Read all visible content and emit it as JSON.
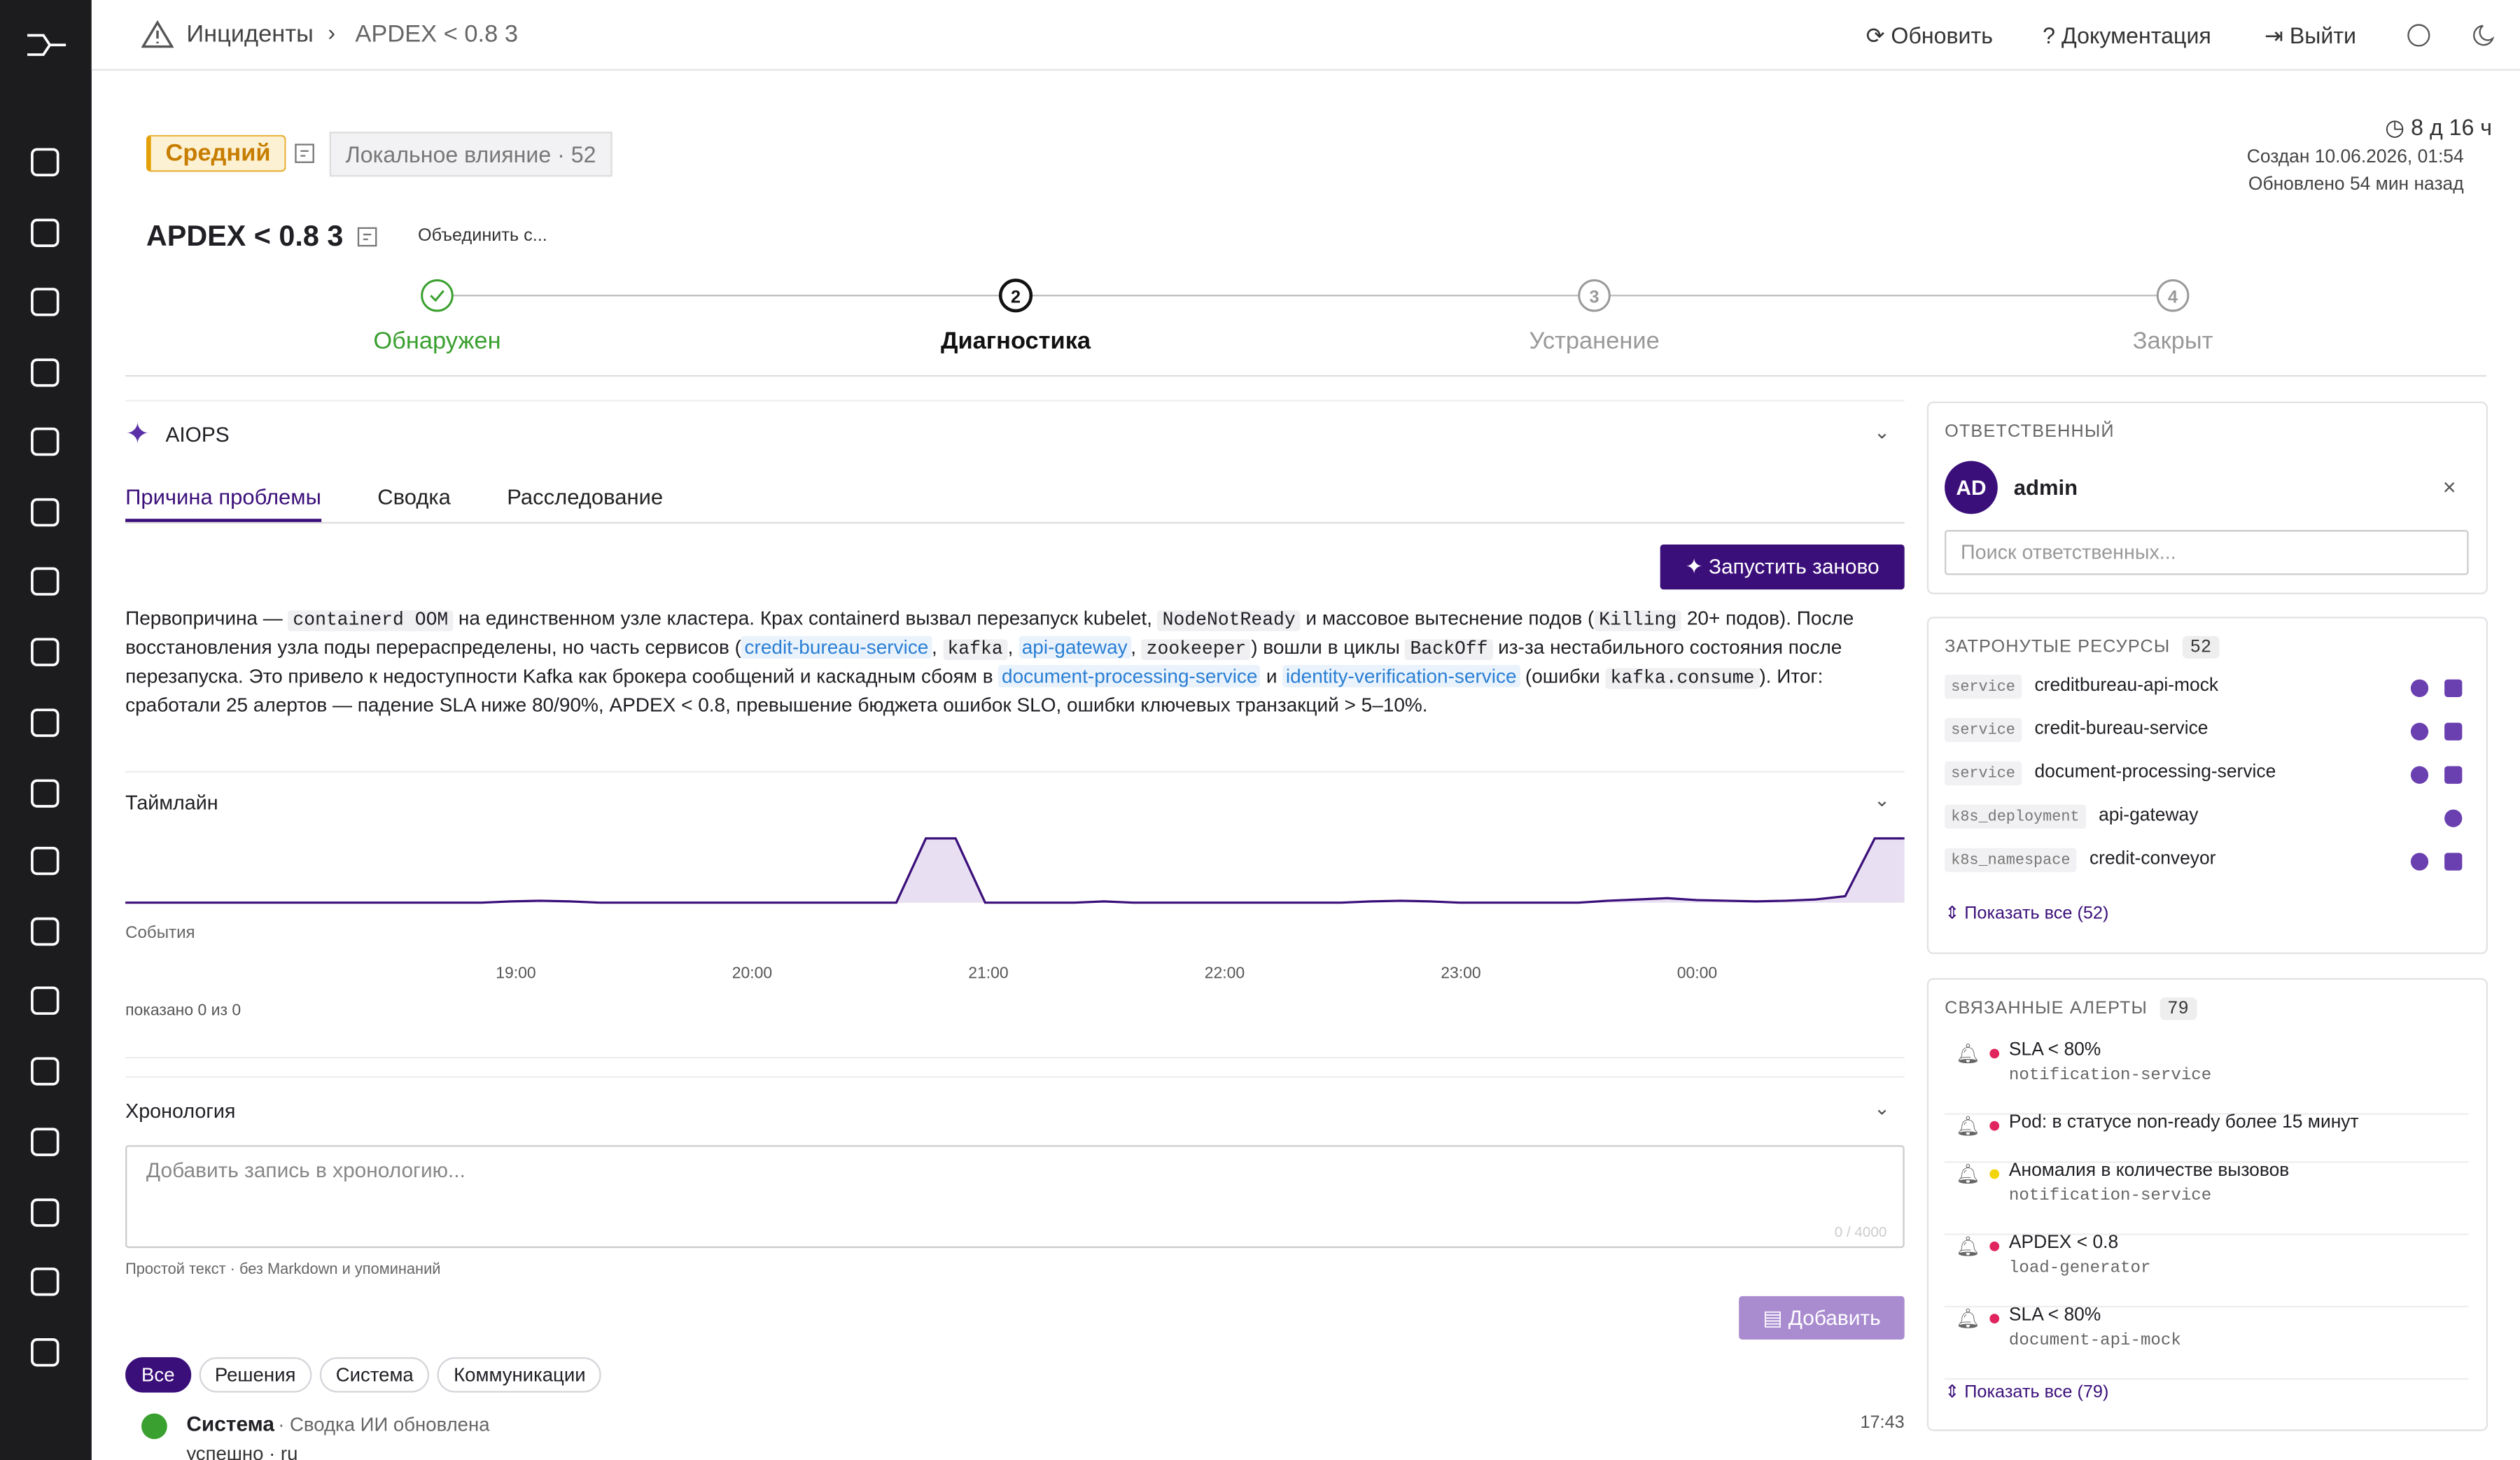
{
  "breadcrumb": [
    "Инциденты",
    "APDEX < 0.8 3"
  ],
  "top_actions": [
    "Обновить",
    "Документация",
    "Выйти"
  ],
  "incident": {
    "severity": "Средний",
    "impact": "Локальное влияние · 52",
    "title": "APDEX < 0.8 3",
    "merge": "Объединить с...",
    "duration": "8 д 16 ч",
    "created": "Создан 10.06.2026, 01:54",
    "updated": "Обновлено 54 мин назад"
  },
  "steps": [
    {
      "label": "Обнаружен",
      "state": "done"
    },
    {
      "n": 2,
      "label": "Диагностика",
      "state": "active"
    },
    {
      "n": 3,
      "label": "Устранение",
      "state": "todo"
    },
    {
      "n": 4,
      "label": "Закрыт",
      "state": "todo"
    }
  ],
  "aiops": {
    "title": "AIOPS",
    "tabs": [
      "Причина проблемы",
      "Сводка",
      "Расследование"
    ],
    "active_tab": 0,
    "rerun": "Запустить заново",
    "text": [
      {
        "t": "Первопричина — "
      },
      {
        "t": "containerd OOM",
        "k": "code"
      },
      {
        "t": " на единственном узле кластера. Крах containerd вызвал перезапуск kubelet, "
      },
      {
        "t": "NodeNotReady",
        "k": "code"
      },
      {
        "t": " и массовое вытеснение подов ("
      },
      {
        "t": "Killing",
        "k": "code"
      },
      {
        "t": " 20+ подов). После восстановления узла поды перераспределены, но часть сервисов ("
      },
      {
        "t": "credit-bureau-service",
        "k": "link"
      },
      {
        "t": ", "
      },
      {
        "t": "kafka",
        "k": "code"
      },
      {
        "t": ", "
      },
      {
        "t": "api-gateway",
        "k": "link"
      },
      {
        "t": ", "
      },
      {
        "t": "zookeeper",
        "k": "code"
      },
      {
        "t": ") вошли в циклы "
      },
      {
        "t": "BackOff",
        "k": "code"
      },
      {
        "t": " из-за нестабильного состояния после перезапуска. Это привело к недоступности Kafka как брокера сообщений и каскадным сбоям в "
      },
      {
        "t": "document-processing-service",
        "k": "link"
      },
      {
        "t": " и "
      },
      {
        "t": "identity-verification-service",
        "k": "link"
      },
      {
        "t": " (ошибки "
      },
      {
        "t": "kafka.consume",
        "k": "code"
      },
      {
        "t": "). Итог: сработали 25 алертов — падение SLA ниже 80/90%, APDEX < 0.8, превышение бюджета ошибок SLO, ошибки ключевых транзакций > 5–10%."
      }
    ]
  },
  "timeline": {
    "title": "Таймлайн",
    "events_label": "События",
    "x_labels": [
      "19:00",
      "20:00",
      "21:00",
      "22:00",
      "23:00",
      "00:00"
    ],
    "values": [
      0,
      0,
      0,
      0,
      0,
      0,
      0,
      0,
      0,
      0,
      0,
      0,
      0,
      0.2,
      0.3,
      0.2,
      0,
      0,
      0,
      0,
      0,
      0,
      0,
      0,
      0,
      0,
      0,
      10,
      10,
      0,
      0,
      0,
      0,
      0.2,
      0,
      0,
      0,
      0,
      0,
      0,
      0,
      0,
      0.2,
      0.3,
      0.2,
      0,
      0,
      0,
      0,
      0,
      0.3,
      0.5,
      0.7,
      0.4,
      0.3,
      0.2,
      0.3,
      0.5,
      1,
      10,
      10
    ],
    "shown": "показано 0 из 0"
  },
  "chronology": {
    "title": "Хронология",
    "placeholder": "Добавить запись в хронологию...",
    "counter": "0 / 4000",
    "hint": "Простой текст · без Markdown и упоминаний",
    "add": "Добавить",
    "filters": [
      "Все",
      "Решения",
      "Система",
      "Коммуникации"
    ],
    "active_filter": 0,
    "entries": [
      {
        "author": "Система",
        "action": "· Сводка ИИ обновлена",
        "time": "17:43",
        "detail": "успешно · ru"
      }
    ]
  },
  "assignee": {
    "title": "ОТВЕТСТВЕННЫЙ",
    "initials": "AD",
    "name": "admin",
    "search": "Поиск ответственных..."
  },
  "resources": {
    "title": "ЗАТРОНУТЫЕ РЕСУРСЫ",
    "count": 52,
    "items": [
      {
        "kind": "service",
        "name": "creditbureau-api-mock",
        "icons": 2
      },
      {
        "kind": "service",
        "name": "credit-bureau-service",
        "icons": 2
      },
      {
        "kind": "service",
        "name": "document-processing-service",
        "icons": 2
      },
      {
        "kind": "k8s_deployment",
        "name": "api-gateway",
        "icons": 1
      },
      {
        "kind": "k8s_namespace",
        "name": "credit-conveyor",
        "icons": 2
      }
    ],
    "show_all": "Показать все (52)"
  },
  "alerts": {
    "title": "СВЯЗАННЫЕ АЛЕРТЫ",
    "count": 79,
    "items": [
      {
        "name": "SLA < 80%",
        "service": "notification-service",
        "color": "#e0245e"
      },
      {
        "name": "Pod: в статусе non-ready более 15 минут",
        "color": "#e0245e"
      },
      {
        "name": "Аномалия в количестве вызовов",
        "service": "notification-service",
        "color": "#f2d40c"
      },
      {
        "name": "APDEX < 0.8",
        "service": "load-generator",
        "color": "#e0245e"
      },
      {
        "name": "SLA < 80%",
        "service": "document-api-mock",
        "color": "#e0245e"
      }
    ],
    "show_all": "Показать все (79)"
  }
}
